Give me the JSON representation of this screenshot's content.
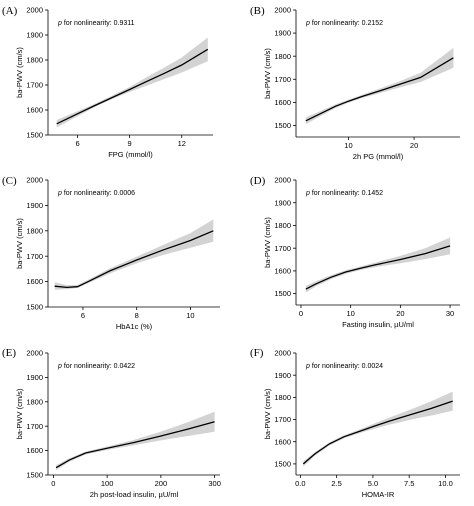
{
  "chart_data": [
    {
      "panel": "(A)",
      "type": "line",
      "xlabel": "FPG (mmol/l)",
      "ylabel": "ba-PWV (cm/s)",
      "annotation": {
        "italic": "p",
        "text": " for nonlinearity: 0.9311"
      },
      "xlim": [
        4.3,
        13.8
      ],
      "ylim": [
        1500,
        2000
      ],
      "xticks": [
        6,
        9,
        12
      ],
      "yticks": [
        1500,
        1600,
        1700,
        1800,
        1900,
        2000
      ],
      "x": [
        4.8,
        6,
        7,
        8,
        9,
        10,
        11,
        12,
        13.5
      ],
      "y": [
        1545,
        1585,
        1618,
        1650,
        1682,
        1715,
        1747,
        1780,
        1843
      ],
      "lower": [
        1530,
        1575,
        1612,
        1644,
        1672,
        1698,
        1724,
        1750,
        1795
      ],
      "upper": [
        1560,
        1595,
        1625,
        1658,
        1692,
        1732,
        1770,
        1810,
        1890
      ]
    },
    {
      "panel": "(B)",
      "type": "line",
      "xlabel": "2h PG (mmol/l)",
      "ylabel": "ba-PWV (cm/s)",
      "annotation": {
        "italic": "p",
        "text": " for nonlinearity: 0.2152"
      },
      "xlim": [
        2,
        27
      ],
      "ylim": [
        1450,
        2000
      ],
      "xticks": [
        10,
        20
      ],
      "yticks": [
        1500,
        1600,
        1700,
        1800,
        1900,
        2000
      ],
      "x": [
        3.5,
        6,
        8,
        10,
        12,
        15,
        18,
        21,
        26
      ],
      "y": [
        1520,
        1555,
        1583,
        1605,
        1625,
        1652,
        1680,
        1708,
        1793
      ],
      "lower": [
        1505,
        1545,
        1575,
        1598,
        1618,
        1642,
        1666,
        1688,
        1750
      ],
      "upper": [
        1535,
        1565,
        1591,
        1612,
        1632,
        1662,
        1694,
        1728,
        1836
      ]
    },
    {
      "panel": "(C)",
      "type": "line",
      "xlabel": "HbA1c (%)",
      "ylabel": "ba-PWV (cm/s)",
      "annotation": {
        "italic": "p",
        "text": " for nonlinearity: 0.0006"
      },
      "xlim": [
        4.7,
        11.1
      ],
      "ylim": [
        1500,
        2000
      ],
      "xticks": [
        6,
        8,
        10
      ],
      "yticks": [
        1500,
        1600,
        1700,
        1800,
        1900,
        2000
      ],
      "x": [
        4.95,
        5.4,
        5.8,
        6.2,
        7,
        8,
        9,
        10,
        10.85
      ],
      "y": [
        1582,
        1577,
        1580,
        1600,
        1642,
        1685,
        1725,
        1762,
        1800
      ],
      "lower": [
        1568,
        1570,
        1575,
        1594,
        1632,
        1672,
        1705,
        1733,
        1757
      ],
      "upper": [
        1598,
        1586,
        1587,
        1608,
        1652,
        1698,
        1745,
        1791,
        1845
      ]
    },
    {
      "panel": "(D)",
      "type": "line",
      "xlabel": "Fasting insulin, µU/ml",
      "ylabel": "ba-PWV (cm/s)",
      "annotation": {
        "italic": "p",
        "text": " for nonlinearity: 0.1452"
      },
      "xlim": [
        -1,
        32
      ],
      "ylim": [
        1450,
        2000
      ],
      "xticks": [
        0,
        10,
        20,
        30
      ],
      "yticks": [
        1500,
        1600,
        1700,
        1800,
        1900,
        2000
      ],
      "x": [
        1,
        3,
        6,
        9,
        12,
        15,
        20,
        25,
        30
      ],
      "y": [
        1520,
        1543,
        1572,
        1595,
        1612,
        1627,
        1650,
        1676,
        1710
      ],
      "lower": [
        1505,
        1532,
        1563,
        1587,
        1604,
        1617,
        1634,
        1652,
        1673
      ],
      "upper": [
        1535,
        1554,
        1581,
        1603,
        1620,
        1637,
        1666,
        1700,
        1747
      ]
    },
    {
      "panel": "(E)",
      "type": "line",
      "xlabel": "2h post-load insulin, µU/ml",
      "ylabel": "ba-PWV (cm/s)",
      "annotation": {
        "italic": "p",
        "text": " for nonlinearity: 0.0422"
      },
      "xlim": [
        -10,
        310
      ],
      "ylim": [
        1500,
        2000
      ],
      "xticks": [
        0,
        100,
        200,
        300
      ],
      "yticks": [
        1500,
        1600,
        1700,
        1800,
        1900,
        2000
      ],
      "x": [
        5,
        30,
        60,
        100,
        150,
        200,
        250,
        300
      ],
      "y": [
        1530,
        1562,
        1590,
        1610,
        1633,
        1660,
        1688,
        1718
      ],
      "lower": [
        1520,
        1555,
        1584,
        1603,
        1622,
        1642,
        1660,
        1677
      ],
      "upper": [
        1540,
        1569,
        1596,
        1617,
        1644,
        1678,
        1716,
        1760
      ]
    },
    {
      "panel": "(F)",
      "type": "line",
      "xlabel": "HOMA-IR",
      "ylabel": "ba-PWV (cm/s)",
      "annotation": {
        "italic": "p",
        "text": " for nonlinearity: 0.0024"
      },
      "xlim": [
        -0.3,
        11
      ],
      "ylim": [
        1450,
        2000
      ],
      "xticks": [
        0.0,
        2.5,
        5.0,
        7.5,
        10.0
      ],
      "ytick_labels_fixed": 1,
      "yticks": [
        1500,
        1600,
        1700,
        1800,
        1900,
        2000
      ],
      "x": [
        0.2,
        1,
        2,
        3,
        4,
        5,
        6,
        7,
        8,
        9,
        10.5
      ],
      "y": [
        1500,
        1545,
        1590,
        1622,
        1645,
        1668,
        1690,
        1710,
        1730,
        1750,
        1783
      ],
      "lower": [
        1488,
        1537,
        1583,
        1615,
        1637,
        1656,
        1675,
        1690,
        1705,
        1718,
        1740
      ],
      "upper": [
        1512,
        1553,
        1597,
        1629,
        1653,
        1680,
        1705,
        1730,
        1755,
        1782,
        1826
      ]
    }
  ]
}
